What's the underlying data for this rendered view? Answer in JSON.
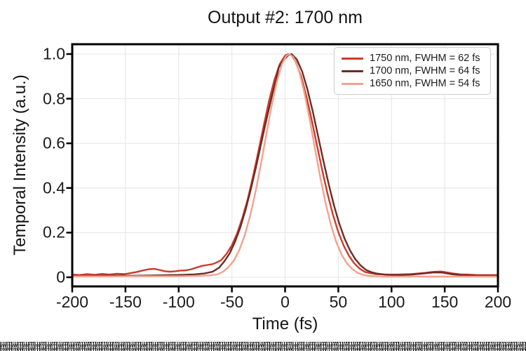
{
  "chart_data": {
    "type": "line",
    "title": "Output #2: 1700 nm",
    "xlabel": "Time (fs)",
    "ylabel": "Temporal Intensity (a.u.)",
    "xlim": [
      -200,
      200
    ],
    "ylim": [
      -0.041,
      1.044
    ],
    "grid": true,
    "grid_color": "#e9e9e9",
    "frame_color": "#000000",
    "text_color": "#1b1b1b",
    "legend_position": "upper right",
    "x_tick_values": [
      -200,
      -150,
      -100,
      -50,
      0,
      50,
      100,
      150,
      200
    ],
    "x_tick_labels": [
      "-200",
      "-150",
      "-100",
      "-50",
      "0",
      "50",
      "100",
      "150",
      "200"
    ],
    "y_tick_values": [
      0,
      0.2,
      0.4,
      0.6,
      0.8,
      1.0
    ],
    "y_tick_labels": [
      "0",
      "0.2",
      "0.4",
      "0.6",
      "0.8",
      "1.0"
    ],
    "series": [
      {
        "name": "1750 nm, FWHM = 62 fs",
        "wavelength_nm": 1750,
        "fwhm_fs": 62,
        "color": "#cd3a2b",
        "points": [
          [
            -200,
            0.012
          ],
          [
            -193,
            0.01
          ],
          [
            -186,
            0.014
          ],
          [
            -179,
            0.011
          ],
          [
            -172,
            0.015
          ],
          [
            -165,
            0.012
          ],
          [
            -158,
            0.016
          ],
          [
            -151,
            0.014
          ],
          [
            -145,
            0.019
          ],
          [
            -139,
            0.024
          ],
          [
            -133,
            0.031
          ],
          [
            -128,
            0.036
          ],
          [
            -123,
            0.038
          ],
          [
            -118,
            0.033
          ],
          [
            -113,
            0.027
          ],
          [
            -108,
            0.025
          ],
          [
            -103,
            0.027
          ],
          [
            -98,
            0.03
          ],
          [
            -93,
            0.031
          ],
          [
            -88,
            0.036
          ],
          [
            -83,
            0.044
          ],
          [
            -78,
            0.051
          ],
          [
            -73,
            0.055
          ],
          [
            -68,
            0.059
          ],
          [
            -64,
            0.067
          ],
          [
            -60,
            0.077
          ],
          [
            -55,
            0.105
          ],
          [
            -50,
            0.143
          ],
          [
            -45,
            0.197
          ],
          [
            -40,
            0.268
          ],
          [
            -35,
            0.352
          ],
          [
            -30,
            0.455
          ],
          [
            -25,
            0.567
          ],
          [
            -20,
            0.682
          ],
          [
            -15,
            0.791
          ],
          [
            -10,
            0.885
          ],
          [
            -5,
            0.955
          ],
          [
            0,
            0.993
          ],
          [
            3,
            1.0
          ],
          [
            6,
            0.996
          ],
          [
            10,
            0.965
          ],
          [
            15,
            0.901
          ],
          [
            20,
            0.811
          ],
          [
            25,
            0.705
          ],
          [
            30,
            0.59
          ],
          [
            35,
            0.477
          ],
          [
            40,
            0.372
          ],
          [
            45,
            0.279
          ],
          [
            50,
            0.202
          ],
          [
            55,
            0.142
          ],
          [
            60,
            0.096
          ],
          [
            65,
            0.062
          ],
          [
            70,
            0.039
          ],
          [
            75,
            0.024
          ],
          [
            80,
            0.018
          ],
          [
            85,
            0.014
          ],
          [
            90,
            0.013
          ],
          [
            97,
            0.012
          ],
          [
            104,
            0.012
          ],
          [
            111,
            0.013
          ],
          [
            118,
            0.014
          ],
          [
            125,
            0.017
          ],
          [
            132,
            0.02
          ],
          [
            139,
            0.024
          ],
          [
            146,
            0.026
          ],
          [
            152,
            0.022
          ],
          [
            158,
            0.017
          ],
          [
            165,
            0.013
          ],
          [
            172,
            0.012
          ],
          [
            180,
            0.01
          ],
          [
            190,
            0.01
          ],
          [
            200,
            0.01
          ]
        ]
      },
      {
        "name": "1700 nm, FWHM = 64 fs",
        "wavelength_nm": 1700,
        "fwhm_fs": 64,
        "color": "#6e2b23",
        "points": [
          [
            -200,
            0.006
          ],
          [
            -185,
            0.006
          ],
          [
            -170,
            0.007
          ],
          [
            -155,
            0.007
          ],
          [
            -140,
            0.007
          ],
          [
            -128,
            0.008
          ],
          [
            -116,
            0.009
          ],
          [
            -105,
            0.01
          ],
          [
            -95,
            0.011
          ],
          [
            -85,
            0.013
          ],
          [
            -76,
            0.017
          ],
          [
            -68,
            0.025
          ],
          [
            -62,
            0.043
          ],
          [
            -57,
            0.072
          ],
          [
            -52,
            0.108
          ],
          [
            -47,
            0.16
          ],
          [
            -42,
            0.225
          ],
          [
            -37,
            0.305
          ],
          [
            -32,
            0.398
          ],
          [
            -27,
            0.5
          ],
          [
            -22,
            0.61
          ],
          [
            -17,
            0.718
          ],
          [
            -12,
            0.82
          ],
          [
            -8,
            0.895
          ],
          [
            -6,
            0.94
          ],
          [
            -3,
            0.962
          ],
          [
            0,
            0.98
          ],
          [
            3,
            0.995
          ],
          [
            6,
            1.0
          ],
          [
            11,
            0.976
          ],
          [
            16,
            0.922
          ],
          [
            21,
            0.841
          ],
          [
            26,
            0.742
          ],
          [
            31,
            0.633
          ],
          [
            36,
            0.522
          ],
          [
            41,
            0.417
          ],
          [
            46,
            0.321
          ],
          [
            51,
            0.239
          ],
          [
            56,
            0.172
          ],
          [
            61,
            0.12
          ],
          [
            66,
            0.081
          ],
          [
            71,
            0.053
          ],
          [
            76,
            0.033
          ],
          [
            81,
            0.023
          ],
          [
            86,
            0.017
          ],
          [
            93,
            0.012
          ],
          [
            100,
            0.01
          ],
          [
            110,
            0.01
          ],
          [
            120,
            0.012
          ],
          [
            130,
            0.017
          ],
          [
            140,
            0.022
          ],
          [
            148,
            0.021
          ],
          [
            156,
            0.014
          ],
          [
            165,
            0.01
          ],
          [
            175,
            0.008
          ],
          [
            185,
            0.007
          ],
          [
            200,
            0.007
          ]
        ]
      },
      {
        "name": "1650 nm, FWHM = 54 fs",
        "wavelength_nm": 1650,
        "fwhm_fs": 54,
        "color": "#f2a28e",
        "points": [
          [
            -200,
            0.004
          ],
          [
            -180,
            0.004
          ],
          [
            -160,
            0.004
          ],
          [
            -140,
            0.005
          ],
          [
            -120,
            0.005
          ],
          [
            -100,
            0.005
          ],
          [
            -88,
            0.006
          ],
          [
            -78,
            0.007
          ],
          [
            -70,
            0.009
          ],
          [
            -64,
            0.012
          ],
          [
            -58,
            0.026
          ],
          [
            -53,
            0.046
          ],
          [
            -48,
            0.076
          ],
          [
            -43,
            0.122
          ],
          [
            -38,
            0.187
          ],
          [
            -33,
            0.272
          ],
          [
            -28,
            0.378
          ],
          [
            -23,
            0.5
          ],
          [
            -18,
            0.631
          ],
          [
            -13,
            0.76
          ],
          [
            -8,
            0.872
          ],
          [
            -3,
            0.954
          ],
          [
            1,
            0.991
          ],
          [
            4,
            1.0
          ],
          [
            8,
            0.985
          ],
          [
            13,
            0.926
          ],
          [
            18,
            0.83
          ],
          [
            23,
            0.709
          ],
          [
            28,
            0.578
          ],
          [
            33,
            0.449
          ],
          [
            38,
            0.333
          ],
          [
            43,
            0.235
          ],
          [
            48,
            0.159
          ],
          [
            53,
            0.102
          ],
          [
            58,
            0.063
          ],
          [
            63,
            0.037
          ],
          [
            68,
            0.02
          ],
          [
            73,
            0.011
          ],
          [
            79,
            0.006
          ],
          [
            86,
            0.004
          ],
          [
            95,
            0.003
          ],
          [
            110,
            0.003
          ],
          [
            130,
            0.003
          ],
          [
            150,
            0.003
          ],
          [
            175,
            0.003
          ],
          [
            200,
            0.003
          ]
        ]
      }
    ]
  }
}
